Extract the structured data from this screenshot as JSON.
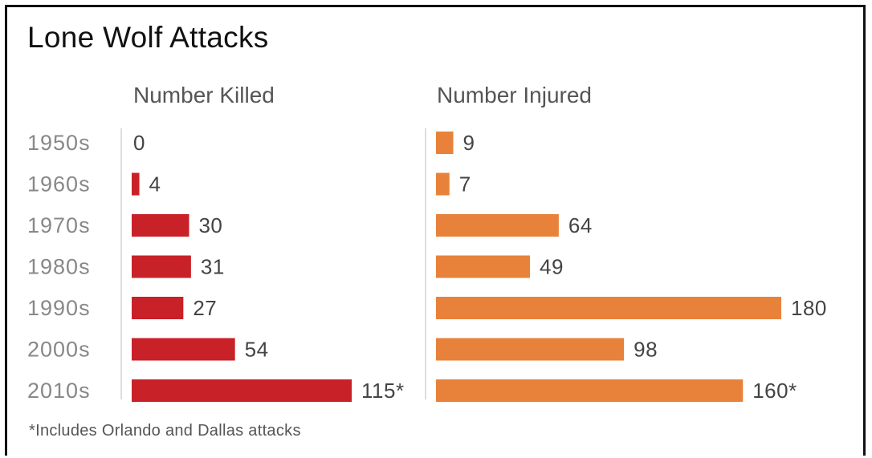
{
  "title": "Lone Wolf Attacks",
  "footnote": "*Includes Orlando and Dallas attacks",
  "colors": {
    "killed": "#c82127",
    "injured": "#e8823a",
    "axis": "#d4d4d4",
    "category": "#888888",
    "value": "#444444",
    "header": "#555555"
  },
  "chart_data": [
    {
      "type": "bar",
      "orientation": "horizontal",
      "title": "Number Killed",
      "categories": [
        "1950s",
        "1960s",
        "1970s",
        "1980s",
        "1990s",
        "2000s",
        "2010s"
      ],
      "values": [
        0,
        4,
        30,
        31,
        27,
        54,
        115
      ],
      "labels": [
        "0",
        "4",
        "30",
        "31",
        "27",
        "54",
        "115*"
      ],
      "xlim": [
        0,
        115
      ],
      "grid": false,
      "legend": "none"
    },
    {
      "type": "bar",
      "orientation": "horizontal",
      "title": "Number Injured",
      "categories": [
        "1950s",
        "1960s",
        "1970s",
        "1980s",
        "1990s",
        "2000s",
        "2010s"
      ],
      "values": [
        9,
        7,
        64,
        49,
        180,
        98,
        160
      ],
      "labels": [
        "9",
        "7",
        "64",
        "49",
        "180",
        "98",
        "160*"
      ],
      "xlim": [
        0,
        180
      ],
      "grid": false,
      "legend": "none"
    }
  ]
}
